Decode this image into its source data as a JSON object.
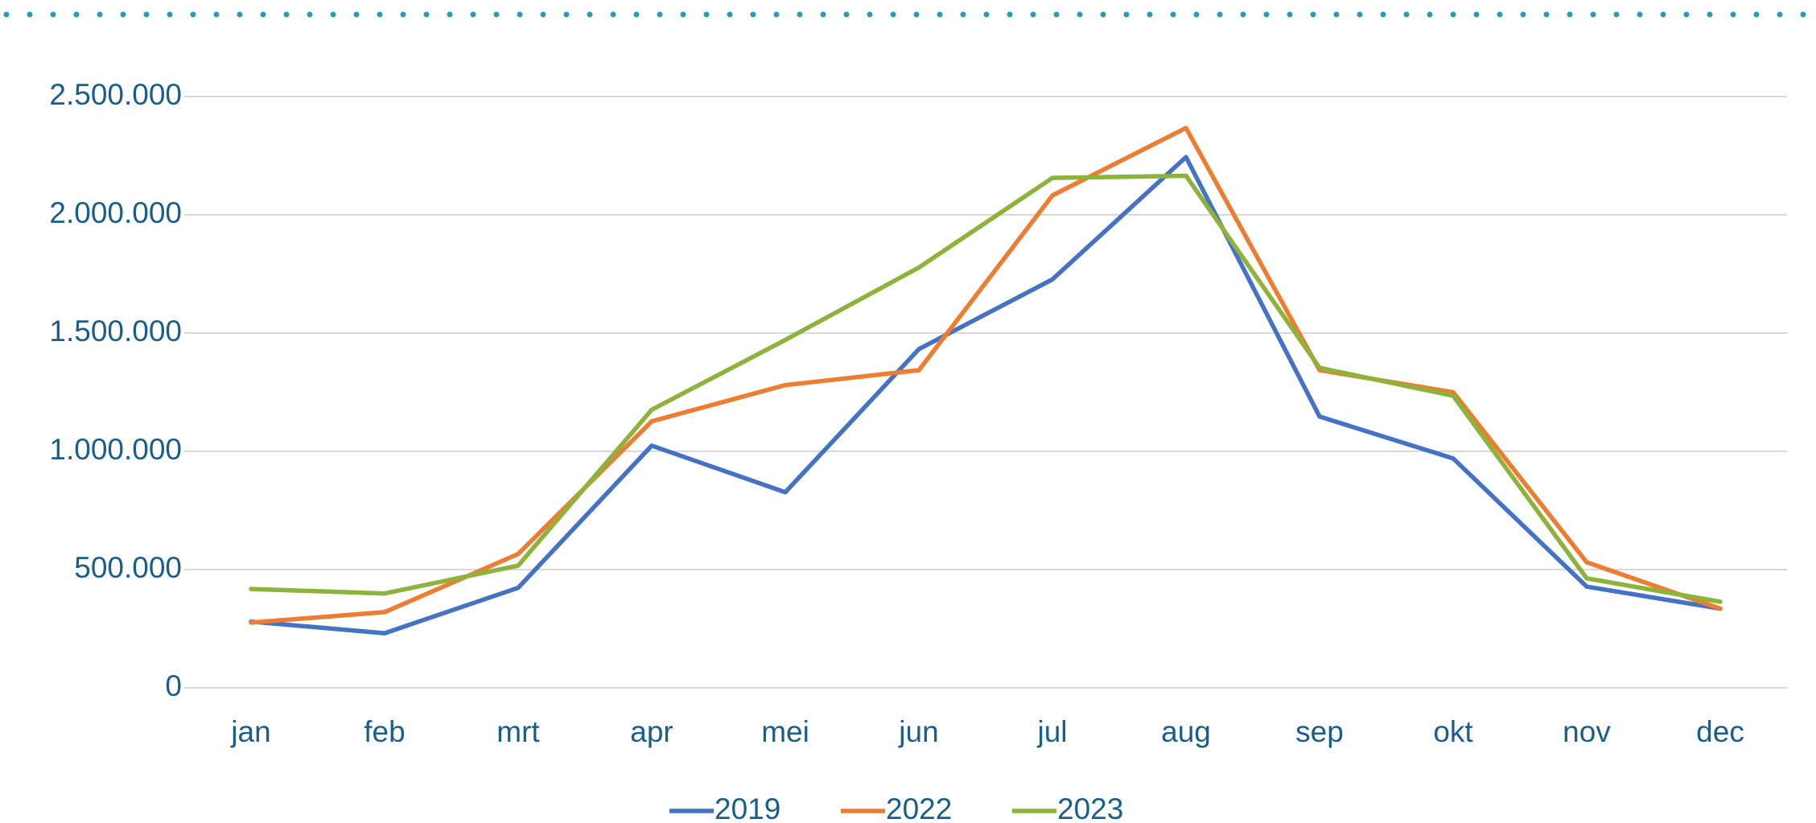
{
  "chart_data": {
    "type": "line",
    "categories": [
      "jan",
      "feb",
      "mrt",
      "apr",
      "mei",
      "jun",
      "jul",
      "aug",
      "sep",
      "okt",
      "nov",
      "dec"
    ],
    "series": [
      {
        "name": "2019",
        "color": "#4472c4",
        "values": [
          280000,
          231000,
          423000,
          1024000,
          827000,
          1432000,
          1727000,
          2244000,
          1147000,
          970000,
          428000,
          335000
        ]
      },
      {
        "name": "2022",
        "color": "#ed7d31",
        "values": [
          276000,
          320000,
          566000,
          1127000,
          1280000,
          1343000,
          2082000,
          2367000,
          1343000,
          1250000,
          531000,
          335000
        ]
      },
      {
        "name": "2023",
        "color": "#8db33a",
        "values": [
          418000,
          399000,
          517000,
          1176000,
          1471000,
          1777000,
          2156000,
          2165000,
          1353000,
          1235000,
          463000,
          364000
        ]
      }
    ],
    "ylim": [
      0,
      2500000
    ],
    "yticks": [
      0,
      {
        "value": 500000,
        "label": "500.000"
      },
      {
        "value": 1000000,
        "label": "1.000.000"
      },
      {
        "value": 1500000,
        "label": "1.500.000"
      },
      {
        "value": 2000000,
        "label": "2.000.000"
      },
      {
        "value": 2500000,
        "label": "2.500.000"
      }
    ],
    "grid": true,
    "legend": "bottom"
  }
}
